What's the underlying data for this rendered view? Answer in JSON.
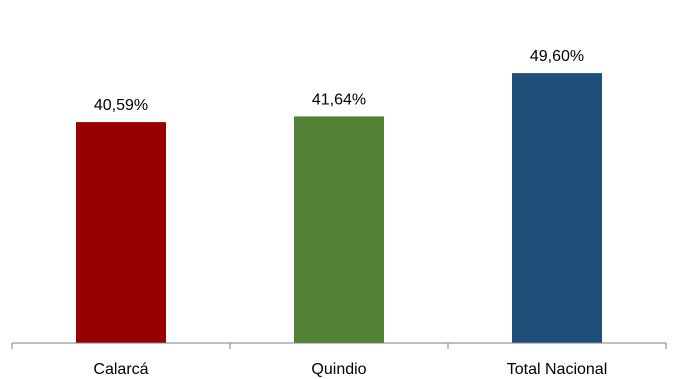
{
  "chart_data": {
    "type": "bar",
    "categories": [
      "Calarcá",
      "Quindio",
      "Total Nacional"
    ],
    "values": [
      40.59,
      41.64,
      49.6
    ],
    "data_labels": [
      "40,59%",
      "41,64%",
      "49,60%"
    ],
    "colors": [
      "#990000",
      "#538135",
      "#1f4e79"
    ],
    "ylim": [
      0,
      60
    ],
    "grid": false,
    "legend": "none"
  }
}
